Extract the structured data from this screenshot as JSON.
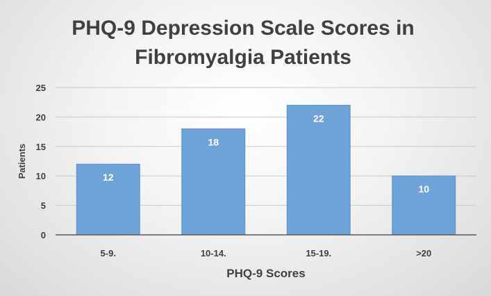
{
  "chart_data": {
    "type": "bar",
    "title": "PHQ-9 Depression Scale Scores in Fibromyalgia Patients",
    "title_lines": [
      "PHQ-9 Depression Scale Scores in",
      "Fibromyalgia Patients"
    ],
    "categories": [
      "5-9.",
      "10-14.",
      "15-19.",
      ">20"
    ],
    "values": [
      12,
      18,
      22,
      10
    ],
    "xlabel": "PHQ-9 Scores",
    "ylabel": "Patients",
    "ylim": [
      0,
      25
    ],
    "yticks": [
      0,
      5,
      10,
      15,
      20,
      25
    ],
    "grid": true,
    "legend": "none",
    "data_labels": true,
    "bar_color": "#6fa3d8",
    "bar_edge_color": "#5b8fc8",
    "grid_color": "#c9c9c9",
    "axis_color": "#595959"
  }
}
